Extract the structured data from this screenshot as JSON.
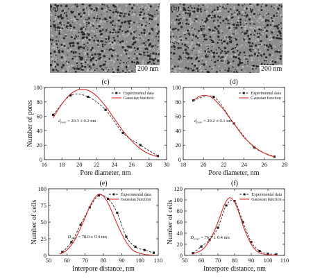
{
  "images": [
    {
      "label": "(a)",
      "scale_text": "200 nm"
    },
    {
      "label": "(b)",
      "scale_text": "200 nm"
    }
  ],
  "colors": {
    "experimental": "#222222",
    "gaussian": "#d62a2a",
    "sem_background": "#8d8d8d"
  },
  "chart_data": [
    {
      "type": "line",
      "panel": "(c)",
      "xlabel": "Pore diameter, nm",
      "ylabel": "Number of pores",
      "xlim": [
        16,
        30
      ],
      "ylim": [
        0,
        100
      ],
      "xticks": [
        16,
        18,
        20,
        22,
        24,
        26,
        28,
        30
      ],
      "yticks": [
        0,
        20,
        40,
        60,
        80,
        100
      ],
      "annotation": {
        "text": "d_pore = 20.3 ± 0.2 nm",
        "at": [
          17.6,
          52
        ]
      },
      "legend": [
        "Experimental data",
        "Gaussian function"
      ],
      "legend_position": "top-right",
      "series": [
        {
          "name": "Experimental data",
          "style": "dashed-markers",
          "x": [
            17,
            19,
            21,
            23,
            25,
            27,
            29
          ],
          "y": [
            62,
            89,
            87,
            69,
            37,
            20,
            5
          ]
        },
        {
          "name": "Gaussian function",
          "style": "smooth",
          "x": [
            17,
            18,
            19,
            20,
            21,
            22,
            23,
            24,
            25,
            26,
            27,
            28,
            29
          ],
          "y": [
            58,
            77,
            91,
            97,
            96,
            88,
            74,
            57,
            40,
            26,
            15,
            8,
            4
          ]
        }
      ]
    },
    {
      "type": "line",
      "panel": "(d)",
      "xlabel": "Pore diameter, nm",
      "ylabel": "",
      "xlim": [
        18,
        28
      ],
      "ylim": [
        0,
        100
      ],
      "xticks": [
        18,
        20,
        22,
        24,
        26,
        28
      ],
      "yticks": [
        0,
        20,
        40,
        60,
        80,
        100
      ],
      "annotation": {
        "text": "d_pore = 20.2 ± 0.1 nm",
        "at": [
          19.1,
          52
        ]
      },
      "legend": [
        "Experimental data",
        "Gaussian function"
      ],
      "legend_position": "top-right",
      "series": [
        {
          "name": "Experimental data",
          "style": "dashed-markers",
          "x": [
            19,
            21,
            23,
            25,
            27
          ],
          "y": [
            82,
            87,
            50,
            17,
            4
          ]
        },
        {
          "name": "Gaussian function",
          "style": "smooth",
          "x": [
            19,
            19.5,
            20,
            20.5,
            21,
            21.5,
            22,
            22.5,
            23,
            23.5,
            24,
            24.5,
            25,
            25.5,
            26,
            26.5,
            27
          ],
          "y": [
            82,
            87,
            89,
            88,
            84,
            77,
            69,
            59,
            50,
            40,
            31,
            24,
            18,
            13,
            9,
            6,
            4
          ]
        }
      ]
    },
    {
      "type": "line",
      "panel": "(e)",
      "xlabel": "Interpore distance, nm",
      "ylabel": "Number of cells",
      "xlim": [
        50,
        110
      ],
      "ylim": [
        0,
        100
      ],
      "xticks": [
        50,
        60,
        70,
        80,
        90,
        100,
        110
      ],
      "yticks": [
        0,
        25,
        50,
        75,
        100
      ],
      "annotation": {
        "text": "D_inter = 78.0 ± 0.4 nm",
        "at": [
          60.5,
          26
        ]
      },
      "legend": [
        "Experimental data",
        "Gaussian function"
      ],
      "legend_position": "top-right",
      "series": [
        {
          "name": "Experimental data",
          "style": "dashed-markers",
          "x": [
            57.5,
            62.5,
            67.5,
            72.5,
            77.5,
            82.5,
            87.5,
            92.5,
            97.5,
            102.5,
            107.5
          ],
          "y": [
            5,
            20,
            46,
            72,
            90,
            85,
            64,
            28,
            13,
            8,
            4
          ]
        },
        {
          "name": "Gaussian function",
          "style": "smooth",
          "x": [
            56,
            60,
            64,
            68,
            72,
            74,
            76,
            78,
            80,
            82,
            84,
            88,
            92,
            96,
            100,
            104,
            108
          ],
          "y": [
            2,
            8,
            22,
            44,
            70,
            81,
            89,
            92,
            89,
            81,
            70,
            44,
            22,
            8,
            3,
            1,
            0.3
          ]
        }
      ]
    },
    {
      "type": "line",
      "panel": "(f)",
      "xlabel": "Interpore distance, nm",
      "ylabel": "Number of cells",
      "xlim": [
        50,
        110
      ],
      "ylim": [
        0,
        120
      ],
      "xticks": [
        50,
        60,
        70,
        80,
        90,
        100,
        110
      ],
      "yticks": [
        0,
        20,
        40,
        60,
        80,
        100,
        120
      ],
      "annotation": {
        "text": "D_inter = 76.7 ± 0.4 nm",
        "at": [
          53.5,
          30
        ]
      },
      "legend": [
        "Experimental data",
        "Gaussian function"
      ],
      "legend_position": "top-right",
      "series": [
        {
          "name": "Experimental data",
          "style": "dashed-markers",
          "x": [
            55,
            60,
            65,
            70,
            75,
            80,
            85,
            90,
            95,
            100,
            105
          ],
          "y": [
            4,
            16,
            28,
            50,
            90,
            98,
            60,
            24,
            8,
            3,
            2
          ]
        },
        {
          "name": "Gaussian function",
          "style": "smooth",
          "x": [
            55,
            60,
            64,
            68,
            71,
            74,
            77,
            80,
            83,
            86,
            90,
            94,
            98,
            102,
            106
          ],
          "y": [
            3,
            9,
            22,
            45,
            68,
            92,
            104,
            96,
            73,
            46,
            20,
            6,
            2,
            0.5,
            0.1
          ]
        }
      ]
    }
  ]
}
